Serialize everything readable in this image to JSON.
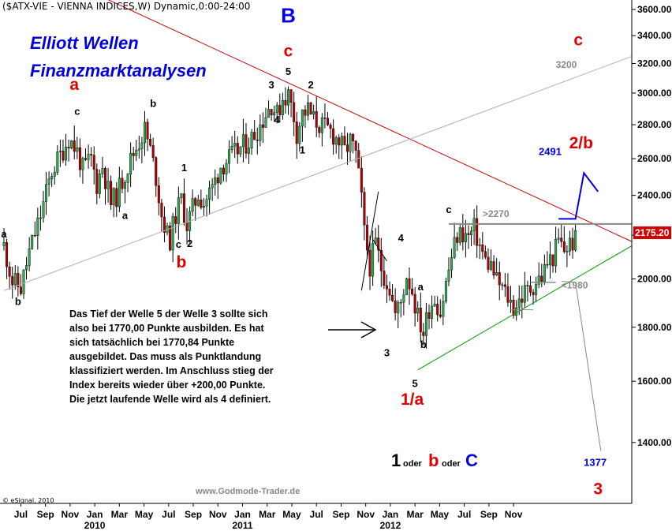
{
  "header": "($ATX-VIE - VIENNA INDICES,W) Dynamic,0:00-24:00",
  "title_lines": [
    "Elliott Wellen",
    "Finanzmarktanalysen"
  ],
  "copyright": "© eSignal, 2010",
  "source": "www.Godmode-Trader.de",
  "last_price_badge": "2175.20",
  "annotation_text": [
    "Das Tief der Welle 5 der Welle 3 sollte sich",
    "also bei 1770,00 Punkte ausbilden. Es hat",
    "sich tatsächlich bei 1770,84 Punkte",
    "ausgebildet. Das muss als Punktlandung",
    "klassifiziert werden. Im Anschluss stieg der",
    "Index bereits wieder über +200,00 Punkte.",
    "Die jetzt laufende Welle wird als 4 definiert."
  ],
  "bottom_label": {
    "one": "1",
    "oder1": "oder",
    "b": "b",
    "oder2": "oder",
    "c": "C"
  },
  "colors": {
    "red": "#e00000",
    "blue": "#0000e0",
    "bull": "#2fa84f",
    "bear": "#b00000",
    "green_line": "#009900",
    "gray": "#888888",
    "badge_bg": "#d00000"
  },
  "chart_data": {
    "type": "candlestick",
    "y_scale": "log",
    "ylim": [
      1230,
      3650
    ],
    "y_ticks": [
      1400,
      1600,
      1800,
      2000,
      2200,
      2400,
      2600,
      2800,
      3000,
      3200,
      3400,
      3600
    ],
    "y_tick_labels": [
      "1400.00",
      "1600.00",
      "1800.00",
      "2000.00",
      "2200.00",
      "2400.00",
      "2600.00",
      "2800.00",
      "3000.00",
      "3200.00",
      "3400.00",
      "3600.00"
    ],
    "x_month_labels": [
      "Jul",
      "Sep",
      "Nov",
      "Jan",
      "Mar",
      "May",
      "Jul",
      "Sep",
      "Nov",
      "Jan",
      "Mar",
      "May",
      "Jul",
      "Sep",
      "Nov",
      "Jan",
      "Mar",
      "May",
      "Jul",
      "Sep",
      "Nov"
    ],
    "x_year_labels": [
      {
        "label": "2010",
        "under": 3
      },
      {
        "label": "2011",
        "under": 9
      },
      {
        "label": "2012",
        "under": 15
      }
    ],
    "close_path": [
      [
        0,
        2150
      ],
      [
        3,
        1990
      ],
      [
        6,
        1960
      ],
      [
        9,
        2120
      ],
      [
        13,
        2300
      ],
      [
        17,
        2530
      ],
      [
        20,
        2620
      ],
      [
        23,
        2720
      ],
      [
        26,
        2640
      ],
      [
        28,
        2540
      ],
      [
        31,
        2600
      ],
      [
        33,
        2460
      ],
      [
        35,
        2560
      ],
      [
        38,
        2360
      ],
      [
        40,
        2400
      ],
      [
        43,
        2520
      ],
      [
        46,
        2630
      ],
      [
        48,
        2700
      ],
      [
        50,
        2770
      ],
      [
        52,
        2650
      ],
      [
        54,
        2500
      ],
      [
        56,
        2300
      ],
      [
        58,
        2200
      ],
      [
        59,
        2180
      ],
      [
        61,
        2300
      ],
      [
        63,
        2380
      ],
      [
        65,
        2250
      ],
      [
        67,
        2330
      ],
      [
        69,
        2410
      ],
      [
        71,
        2360
      ],
      [
        74,
        2440
      ],
      [
        77,
        2560
      ],
      [
        80,
        2600
      ],
      [
        84,
        2660
      ],
      [
        88,
        2720
      ],
      [
        91,
        2800
      ],
      [
        93,
        2870
      ],
      [
        95,
        2930
      ],
      [
        97,
        2860
      ],
      [
        99,
        2970
      ],
      [
        101,
        2990
      ],
      [
        103,
        2850
      ],
      [
        104,
        2750
      ],
      [
        106,
        2870
      ],
      [
        108,
        2890
      ],
      [
        110,
        2830
      ],
      [
        113,
        2790
      ],
      [
        116,
        2760
      ],
      [
        119,
        2700
      ],
      [
        121,
        2640
      ],
      [
        123,
        2700
      ],
      [
        125,
        2620
      ],
      [
        127,
        2380
      ],
      [
        128,
        2210
      ],
      [
        130,
        2060
      ],
      [
        132,
        2160
      ],
      [
        134,
        2050
      ],
      [
        137,
        1960
      ],
      [
        139,
        1850
      ],
      [
        141,
        1900
      ],
      [
        143,
        2020
      ],
      [
        145,
        1950
      ],
      [
        147,
        1840
      ],
      [
        149,
        1780
      ],
      [
        151,
        1880
      ],
      [
        153,
        1920
      ],
      [
        155,
        1860
      ],
      [
        157,
        1980
      ],
      [
        159,
        2100
      ],
      [
        161,
        2200
      ],
      [
        163,
        2210
      ],
      [
        165,
        2190
      ],
      [
        167,
        2230
      ],
      [
        169,
        2150
      ],
      [
        171,
        2080
      ],
      [
        173,
        2060
      ],
      [
        175,
        1990
      ],
      [
        177,
        1960
      ],
      [
        179,
        1920
      ],
      [
        181,
        1880
      ],
      [
        183,
        1910
      ],
      [
        185,
        1940
      ],
      [
        187,
        1960
      ],
      [
        189,
        1990
      ],
      [
        191,
        2010
      ],
      [
        193,
        2070
      ],
      [
        195,
        2100
      ],
      [
        197,
        2170
      ],
      [
        199,
        2130
      ],
      [
        201,
        2160
      ],
      [
        203,
        2175
      ]
    ],
    "lines": [
      {
        "name": "red-trend",
        "from": [
          10,
          3970
        ],
        "to": [
          223,
          2170
        ]
      },
      {
        "name": "gray-trend",
        "from": [
          0,
          1950
        ],
        "to": [
          223,
          3250
        ]
      },
      {
        "name": "green-trend",
        "from": [
          147,
          1640
        ],
        "to": [
          223,
          2150
        ]
      },
      {
        "name": "level-2270",
        "from": [
          158,
          2255
        ],
        "to": [
          223,
          2255
        ]
      },
      {
        "name": "level-1980",
        "from": [
          187,
          1985
        ],
        "to": [
          196,
          1985
        ]
      },
      {
        "name": "level-1870",
        "from": [
          180,
          1870
        ],
        "to": [
          188,
          1870
        ]
      }
    ],
    "level_labels": [
      {
        "text": ">2270",
        "x": 170,
        "y": 2290
      },
      {
        "text": "<1980",
        "x": 198,
        "y": 1960
      },
      {
        "text": "3200",
        "x": 196,
        "y": 3170
      }
    ],
    "wave_labels": [
      {
        "t": "a",
        "x": 0,
        "y": 2190,
        "c": "black"
      },
      {
        "t": "b",
        "x": 5,
        "y": 1890,
        "c": "black"
      },
      {
        "t": "a",
        "x": 25,
        "y": 3020,
        "c": "red",
        "big": 1
      },
      {
        "t": "c",
        "x": 26,
        "y": 2860,
        "c": "black"
      },
      {
        "t": "b",
        "x": 53,
        "y": 2910,
        "c": "black"
      },
      {
        "t": "a",
        "x": 43,
        "y": 2280,
        "c": "black"
      },
      {
        "t": "1",
        "x": 64,
        "y": 2530,
        "c": "black"
      },
      {
        "t": "c",
        "x": 62,
        "y": 2140,
        "c": "black"
      },
      {
        "t": "2",
        "x": 66,
        "y": 2145,
        "c": "black"
      },
      {
        "t": "b",
        "x": 63,
        "y": 2050,
        "c": "red",
        "big": 1
      },
      {
        "t": "3",
        "x": 95,
        "y": 3030,
        "c": "black"
      },
      {
        "t": "5",
        "x": 101,
        "y": 3120,
        "c": "black"
      },
      {
        "t": "4",
        "x": 97,
        "y": 2810,
        "c": "black"
      },
      {
        "t": "2",
        "x": 109,
        "y": 3030,
        "c": "black"
      },
      {
        "t": "1",
        "x": 106,
        "y": 2630,
        "c": "black"
      },
      {
        "t": "c",
        "x": 101,
        "y": 3250,
        "c": "red",
        "big": 1
      },
      {
        "t": "B",
        "x": 101,
        "y": 3500,
        "c": "blue",
        "big": 2
      },
      {
        "t": "4",
        "x": 141,
        "y": 2170,
        "c": "black"
      },
      {
        "t": "3",
        "x": 136,
        "y": 1690,
        "c": "black"
      },
      {
        "t": "a",
        "x": 148,
        "y": 1950,
        "c": "black"
      },
      {
        "t": "b",
        "x": 149,
        "y": 1720,
        "c": "black"
      },
      {
        "t": "5",
        "x": 146,
        "y": 1580,
        "c": "black"
      },
      {
        "t": "1/a",
        "x": 145,
        "y": 1520,
        "c": "red",
        "big": 1
      },
      {
        "t": "c",
        "x": 158,
        "y": 2310,
        "c": "black"
      },
      {
        "t": "2/b",
        "x": 205,
        "y": 2660,
        "c": "red",
        "big": 1
      },
      {
        "t": "2491",
        "x": 194,
        "y": 2620,
        "c": "blue"
      },
      {
        "t": "c",
        "x": 204,
        "y": 3330,
        "c": "red",
        "big": 1
      },
      {
        "t": "1377",
        "x": 210,
        "y": 1330,
        "c": "blue"
      },
      {
        "t": "3",
        "x": 211,
        "y": 1250,
        "c": "red",
        "big": 1
      }
    ]
  }
}
